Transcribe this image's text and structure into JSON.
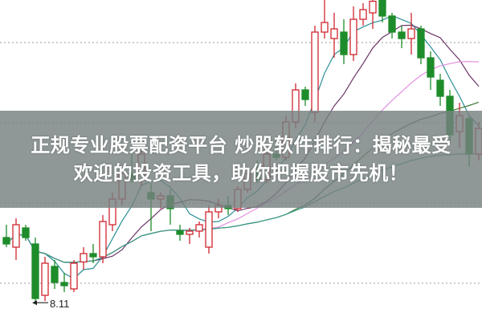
{
  "title": {
    "line1": "正规专业股票配资平台 炒股软件排行：揭秘最受",
    "line2": "欢迎的投资工具，助你把握股市先机！"
  },
  "chart_data": {
    "type": "candlestick",
    "ylim": [
      7.8,
      12.8
    ],
    "grid": "dotted-horizontal",
    "up_color": "#d0262f",
    "down_color": "#1e8c2a",
    "annotation": {
      "text": "8.11",
      "candle_index": 4
    },
    "moving_averages": [
      {
        "period": 5,
        "color": "#2a8f96"
      },
      {
        "period": 10,
        "color": "#6b3466"
      },
      {
        "period": 20,
        "color": "#e28fe0"
      },
      {
        "period": 30,
        "color": "#3f7a3a"
      },
      {
        "period": 60,
        "color": "#3a9a8a"
      }
    ],
    "candles": [
      [
        9.1,
        9.3,
        8.95,
        9.0
      ],
      [
        8.95,
        9.4,
        8.75,
        9.3
      ],
      [
        9.25,
        9.3,
        9.05,
        9.1
      ],
      [
        9.0,
        9.1,
        8.1,
        8.15
      ],
      [
        8.2,
        8.8,
        8.11,
        8.7
      ],
      [
        8.65,
        8.75,
        8.3,
        8.4
      ],
      [
        8.4,
        8.55,
        8.25,
        8.35
      ],
      [
        8.3,
        8.75,
        8.25,
        8.7
      ],
      [
        8.72,
        8.95,
        8.6,
        8.85
      ],
      [
        8.85,
        9.0,
        8.7,
        8.8
      ],
      [
        8.8,
        9.45,
        8.7,
        9.35
      ],
      [
        9.3,
        9.8,
        9.2,
        9.7
      ],
      [
        9.7,
        10.2,
        9.6,
        10.1
      ],
      [
        10.1,
        10.4,
        9.95,
        10.0
      ],
      [
        10.0,
        10.5,
        9.9,
        10.4
      ],
      [
        9.8,
        9.95,
        9.2,
        9.7
      ],
      [
        9.7,
        9.8,
        9.55,
        9.75
      ],
      [
        9.75,
        9.85,
        9.3,
        9.55
      ],
      [
        9.2,
        9.3,
        9.05,
        9.15
      ],
      [
        9.15,
        9.25,
        9.0,
        9.2
      ],
      [
        9.2,
        9.35,
        9.1,
        9.3
      ],
      [
        8.95,
        9.6,
        8.85,
        9.5
      ],
      [
        9.5,
        9.7,
        9.4,
        9.6
      ],
      [
        9.6,
        9.75,
        9.45,
        9.55
      ],
      [
        9.55,
        9.9,
        9.5,
        9.85
      ],
      [
        9.85,
        10.2,
        9.8,
        10.1
      ],
      [
        10.1,
        10.3,
        9.95,
        10.0
      ],
      [
        10.0,
        10.45,
        9.95,
        10.4
      ],
      [
        10.4,
        10.6,
        10.3,
        10.35
      ],
      [
        10.35,
        11.0,
        10.3,
        10.9
      ],
      [
        10.9,
        11.5,
        10.8,
        11.4
      ],
      [
        11.4,
        11.45,
        11.15,
        11.25
      ],
      [
        11.05,
        12.4,
        10.9,
        12.3
      ],
      [
        12.3,
        12.8,
        12.2,
        12.45
      ],
      [
        12.2,
        12.6,
        11.9,
        12.35
      ],
      [
        12.3,
        12.5,
        11.8,
        11.95
      ],
      [
        11.95,
        12.7,
        11.85,
        12.5
      ],
      [
        12.5,
        12.75,
        12.4,
        12.65
      ],
      [
        12.6,
        12.8,
        12.35,
        12.78
      ],
      [
        12.8,
        12.8,
        12.45,
        12.55
      ],
      [
        12.55,
        12.6,
        12.2,
        12.3
      ],
      [
        12.3,
        12.4,
        12.05,
        12.2
      ],
      [
        12.2,
        12.6,
        11.95,
        12.35
      ],
      [
        12.35,
        12.4,
        11.8,
        11.9
      ],
      [
        11.9,
        12.0,
        11.4,
        11.6
      ],
      [
        11.55,
        11.65,
        11.15,
        11.3
      ],
      [
        11.3,
        11.4,
        10.6,
        10.7
      ],
      [
        10.75,
        11.2,
        10.5,
        11.0
      ],
      [
        10.95,
        11.0,
        10.2,
        10.4
      ],
      [
        10.4,
        10.9,
        10.3,
        10.8
      ]
    ]
  }
}
